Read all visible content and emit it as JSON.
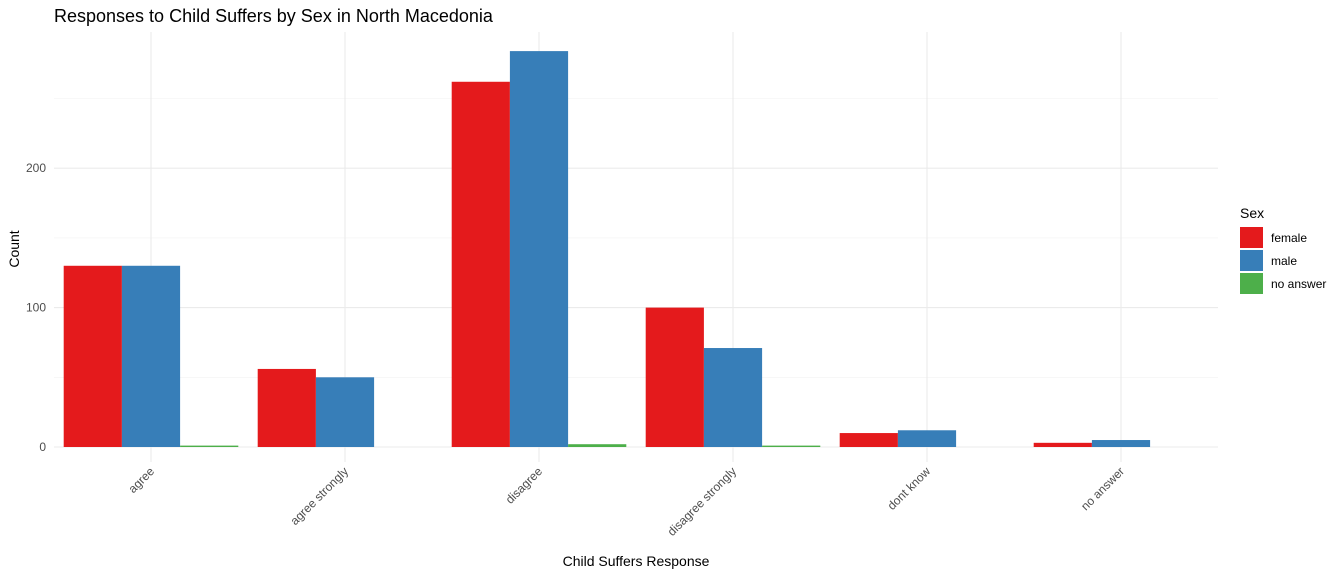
{
  "chart_data": {
    "type": "bar",
    "title": "Responses to Child Suffers by Sex in North Macedonia",
    "xlabel": "Child Suffers Response",
    "ylabel": "Count",
    "categories": [
      "agree",
      "agree strongly",
      "disagree",
      "disagree strongly",
      "dont know",
      "no answer"
    ],
    "series": [
      {
        "name": "female",
        "color": "#E41A1C",
        "values": [
          130,
          56,
          262,
          100,
          10,
          3
        ]
      },
      {
        "name": "male",
        "color": "#377EB8",
        "values": [
          130,
          50,
          284,
          71,
          12,
          5
        ]
      },
      {
        "name": "no answer",
        "color": "#4DAF4A",
        "values": [
          1,
          null,
          2,
          1,
          null,
          null
        ]
      }
    ],
    "ylim": [
      0,
      297
    ],
    "yticks": [
      0,
      100,
      200
    ],
    "legend": {
      "title": "Sex",
      "position": "right"
    },
    "grid": true
  }
}
